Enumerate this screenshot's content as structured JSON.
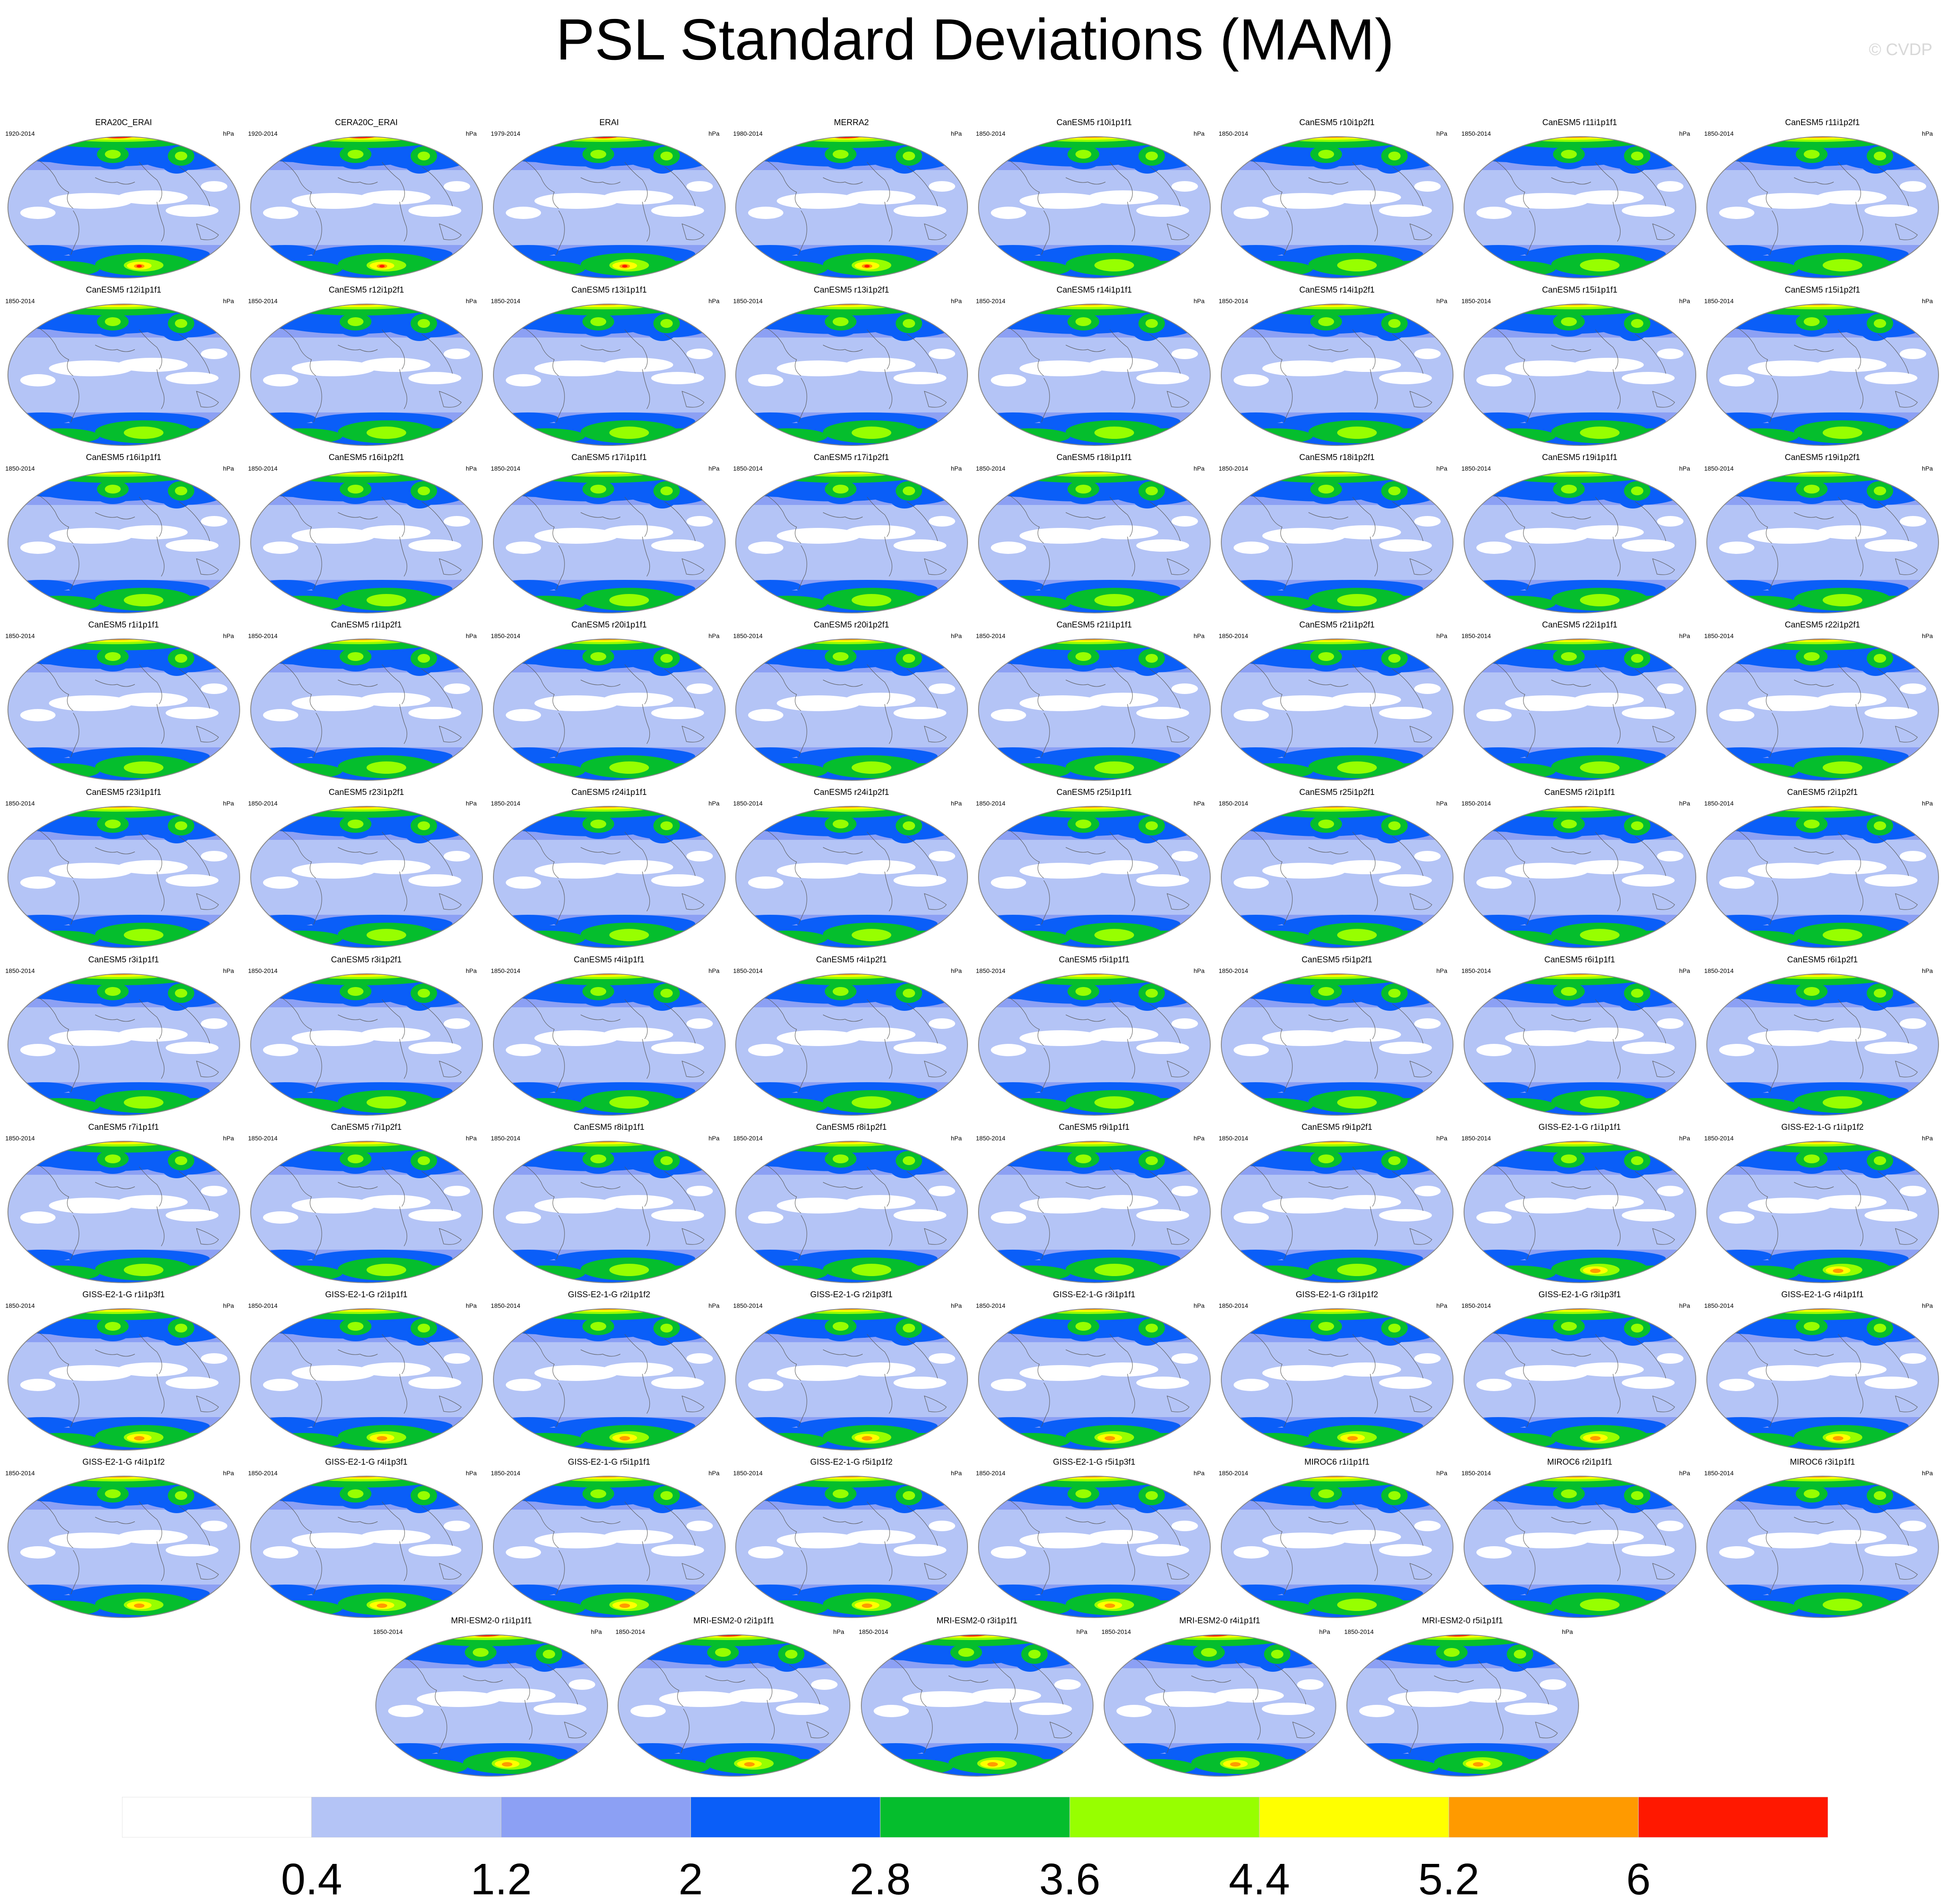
{
  "title": "PSL Standard Deviations (MAM)",
  "copyright": "© CVDP",
  "chart_data": {
    "type": "heatmap",
    "title": "PSL Standard Deviations (MAM)",
    "variable": "PSL",
    "season": "MAM",
    "units": "hPa",
    "colorbar": {
      "levels": [
        "0.4",
        "1.2",
        "2",
        "2.8",
        "3.6",
        "4.4",
        "5.2",
        "6"
      ],
      "colors": [
        "#ffffff",
        "#b4c4f6",
        "#8ca0f4",
        "#0a5ef8",
        "#05be2d",
        "#97ff00",
        "#ffff00",
        "#ff9a00",
        "#ff1800"
      ]
    },
    "panels": [
      {
        "title": "ERA20C_ERAI",
        "period": "1920-2014",
        "family": "obs"
      },
      {
        "title": "CERA20C_ERAI",
        "period": "1920-2014",
        "family": "obs"
      },
      {
        "title": "ERAI",
        "period": "1979-2014",
        "family": "obs"
      },
      {
        "title": "MERRA2",
        "period": "1980-2014",
        "family": "obs"
      },
      {
        "title": "CanESM5 r10i1p1f1",
        "period": "1850-2014",
        "family": "canesm"
      },
      {
        "title": "CanESM5 r10i1p2f1",
        "period": "1850-2014",
        "family": "canesm"
      },
      {
        "title": "CanESM5 r11i1p1f1",
        "period": "1850-2014",
        "family": "canesm"
      },
      {
        "title": "CanESM5 r11i1p2f1",
        "period": "1850-2014",
        "family": "canesm"
      },
      {
        "title": "CanESM5 r12i1p1f1",
        "period": "1850-2014",
        "family": "canesm"
      },
      {
        "title": "CanESM5 r12i1p2f1",
        "period": "1850-2014",
        "family": "canesm"
      },
      {
        "title": "CanESM5 r13i1p1f1",
        "period": "1850-2014",
        "family": "canesm"
      },
      {
        "title": "CanESM5 r13i1p2f1",
        "period": "1850-2014",
        "family": "canesm"
      },
      {
        "title": "CanESM5 r14i1p1f1",
        "period": "1850-2014",
        "family": "canesm"
      },
      {
        "title": "CanESM5 r14i1p2f1",
        "period": "1850-2014",
        "family": "canesm"
      },
      {
        "title": "CanESM5 r15i1p1f1",
        "period": "1850-2014",
        "family": "canesm"
      },
      {
        "title": "CanESM5 r15i1p2f1",
        "period": "1850-2014",
        "family": "canesm"
      },
      {
        "title": "CanESM5 r16i1p1f1",
        "period": "1850-2014",
        "family": "canesm"
      },
      {
        "title": "CanESM5 r16i1p2f1",
        "period": "1850-2014",
        "family": "canesm"
      },
      {
        "title": "CanESM5 r17i1p1f1",
        "period": "1850-2014",
        "family": "canesm"
      },
      {
        "title": "CanESM5 r17i1p2f1",
        "period": "1850-2014",
        "family": "canesm"
      },
      {
        "title": "CanESM5 r18i1p1f1",
        "period": "1850-2014",
        "family": "canesm"
      },
      {
        "title": "CanESM5 r18i1p2f1",
        "period": "1850-2014",
        "family": "canesm"
      },
      {
        "title": "CanESM5 r19i1p1f1",
        "period": "1850-2014",
        "family": "canesm"
      },
      {
        "title": "CanESM5 r19i1p2f1",
        "period": "1850-2014",
        "family": "canesm"
      },
      {
        "title": "CanESM5 r1i1p1f1",
        "period": "1850-2014",
        "family": "canesm"
      },
      {
        "title": "CanESM5 r1i1p2f1",
        "period": "1850-2014",
        "family": "canesm"
      },
      {
        "title": "CanESM5 r20i1p1f1",
        "period": "1850-2014",
        "family": "canesm"
      },
      {
        "title": "CanESM5 r20i1p2f1",
        "period": "1850-2014",
        "family": "canesm"
      },
      {
        "title": "CanESM5 r21i1p1f1",
        "period": "1850-2014",
        "family": "canesm"
      },
      {
        "title": "CanESM5 r21i1p2f1",
        "period": "1850-2014",
        "family": "canesm"
      },
      {
        "title": "CanESM5 r22i1p1f1",
        "period": "1850-2014",
        "family": "canesm"
      },
      {
        "title": "CanESM5 r22i1p2f1",
        "period": "1850-2014",
        "family": "canesm"
      },
      {
        "title": "CanESM5 r23i1p1f1",
        "period": "1850-2014",
        "family": "canesm"
      },
      {
        "title": "CanESM5 r23i1p2f1",
        "period": "1850-2014",
        "family": "canesm"
      },
      {
        "title": "CanESM5 r24i1p1f1",
        "period": "1850-2014",
        "family": "canesm"
      },
      {
        "title": "CanESM5 r24i1p2f1",
        "period": "1850-2014",
        "family": "canesm"
      },
      {
        "title": "CanESM5 r25i1p1f1",
        "period": "1850-2014",
        "family": "canesm"
      },
      {
        "title": "CanESM5 r25i1p2f1",
        "period": "1850-2014",
        "family": "canesm"
      },
      {
        "title": "CanESM5 r2i1p1f1",
        "period": "1850-2014",
        "family": "canesm"
      },
      {
        "title": "CanESM5 r2i1p2f1",
        "period": "1850-2014",
        "family": "canesm"
      },
      {
        "title": "CanESM5 r3i1p1f1",
        "period": "1850-2014",
        "family": "canesm"
      },
      {
        "title": "CanESM5 r3i1p2f1",
        "period": "1850-2014",
        "family": "canesm"
      },
      {
        "title": "CanESM5 r4i1p1f1",
        "period": "1850-2014",
        "family": "canesm"
      },
      {
        "title": "CanESM5 r4i1p2f1",
        "period": "1850-2014",
        "family": "canesm"
      },
      {
        "title": "CanESM5 r5i1p1f1",
        "period": "1850-2014",
        "family": "canesm"
      },
      {
        "title": "CanESM5 r5i1p2f1",
        "period": "1850-2014",
        "family": "canesm"
      },
      {
        "title": "CanESM5 r6i1p1f1",
        "period": "1850-2014",
        "family": "canesm"
      },
      {
        "title": "CanESM5 r6i1p2f1",
        "period": "1850-2014",
        "family": "canesm"
      },
      {
        "title": "CanESM5 r7i1p1f1",
        "period": "1850-2014",
        "family": "canesm"
      },
      {
        "title": "CanESM5 r7i1p2f1",
        "period": "1850-2014",
        "family": "canesm"
      },
      {
        "title": "CanESM5 r8i1p1f1",
        "period": "1850-2014",
        "family": "canesm"
      },
      {
        "title": "CanESM5 r8i1p2f1",
        "period": "1850-2014",
        "family": "canesm"
      },
      {
        "title": "CanESM5 r9i1p1f1",
        "period": "1850-2014",
        "family": "canesm"
      },
      {
        "title": "CanESM5 r9i1p2f1",
        "period": "1850-2014",
        "family": "canesm"
      },
      {
        "title": "GISS-E2-1-G r1i1p1f1",
        "period": "1850-2014",
        "family": "giss"
      },
      {
        "title": "GISS-E2-1-G r1i1p1f2",
        "period": "1850-2014",
        "family": "giss"
      },
      {
        "title": "GISS-E2-1-G r1i1p3f1",
        "period": "1850-2014",
        "family": "giss"
      },
      {
        "title": "GISS-E2-1-G r2i1p1f1",
        "period": "1850-2014",
        "family": "giss"
      },
      {
        "title": "GISS-E2-1-G r2i1p1f2",
        "period": "1850-2014",
        "family": "giss"
      },
      {
        "title": "GISS-E2-1-G r2i1p3f1",
        "period": "1850-2014",
        "family": "giss"
      },
      {
        "title": "GISS-E2-1-G r3i1p1f1",
        "period": "1850-2014",
        "family": "giss"
      },
      {
        "title": "GISS-E2-1-G r3i1p1f2",
        "period": "1850-2014",
        "family": "giss"
      },
      {
        "title": "GISS-E2-1-G r3i1p3f1",
        "period": "1850-2014",
        "family": "giss"
      },
      {
        "title": "GISS-E2-1-G r4i1p1f1",
        "period": "1850-2014",
        "family": "giss"
      },
      {
        "title": "GISS-E2-1-G r4i1p1f2",
        "period": "1850-2014",
        "family": "giss"
      },
      {
        "title": "GISS-E2-1-G r4i1p3f1",
        "period": "1850-2014",
        "family": "giss"
      },
      {
        "title": "GISS-E2-1-G r5i1p1f1",
        "period": "1850-2014",
        "family": "giss"
      },
      {
        "title": "GISS-E2-1-G r5i1p1f2",
        "period": "1850-2014",
        "family": "giss"
      },
      {
        "title": "GISS-E2-1-G r5i1p3f1",
        "period": "1850-2014",
        "family": "giss"
      },
      {
        "title": "MIROC6 r1i1p1f1",
        "period": "1850-2014",
        "family": "miroc"
      },
      {
        "title": "MIROC6 r2i1p1f1",
        "period": "1850-2014",
        "family": "miroc"
      },
      {
        "title": "MIROC6 r3i1p1f1",
        "period": "1850-2014",
        "family": "miroc"
      },
      {
        "title": "MRI-ESM2-0 r1i1p1f1",
        "period": "1850-2014",
        "family": "mri"
      },
      {
        "title": "MRI-ESM2-0 r2i1p1f1",
        "period": "1850-2014",
        "family": "mri"
      },
      {
        "title": "MRI-ESM2-0 r3i1p1f1",
        "period": "1850-2014",
        "family": "mri"
      },
      {
        "title": "MRI-ESM2-0 r4i1p1f1",
        "period": "1850-2014",
        "family": "mri"
      },
      {
        "title": "MRI-ESM2-0 r5i1p1f1",
        "period": "1850-2014",
        "family": "mri"
      }
    ]
  }
}
